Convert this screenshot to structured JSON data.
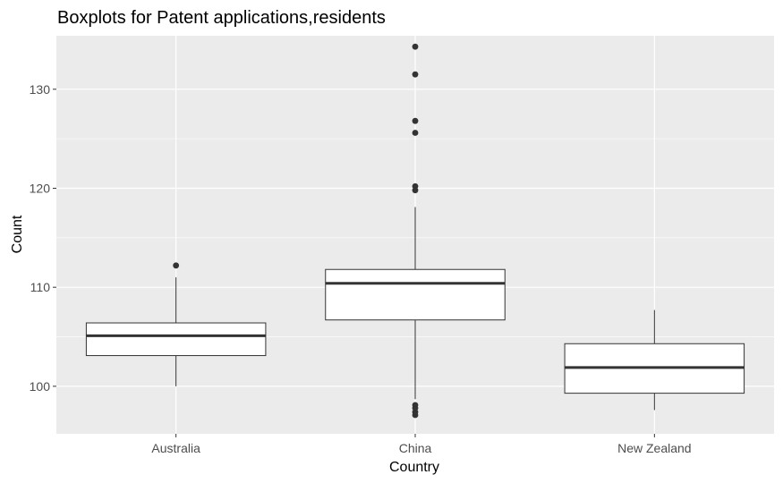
{
  "chart_data": {
    "type": "boxplot",
    "title": "Boxplots for Patent applications,residents",
    "xlabel": "Country",
    "ylabel": "Count",
    "ylim": [
      95.2,
      135.4
    ],
    "yticks": [
      100,
      110,
      120,
      130
    ],
    "grid": true,
    "colors": {
      "panel": "#ebebeb",
      "grid_major": "#ffffff",
      "box_fill": "#ffffff",
      "box_stroke": "#333333",
      "outlier": "#333333"
    },
    "categories": [
      "Australia",
      "China",
      "New Zealand"
    ],
    "boxes": [
      {
        "category": "Australia",
        "whisker_low": 100.0,
        "q1": 103.1,
        "median": 105.1,
        "q3": 106.4,
        "whisker_high": 111.0,
        "outliers": [
          112.2
        ]
      },
      {
        "category": "China",
        "whisker_low": 98.7,
        "q1": 106.7,
        "median": 110.4,
        "q3": 111.8,
        "whisker_high": 118.1,
        "outliers": [
          97.1,
          97.4,
          97.8,
          98.1,
          119.8,
          120.2,
          125.6,
          126.8,
          131.5,
          134.3
        ]
      },
      {
        "category": "New Zealand",
        "whisker_low": 97.6,
        "q1": 99.3,
        "median": 101.9,
        "q3": 104.3,
        "whisker_high": 107.7,
        "outliers": []
      }
    ]
  }
}
